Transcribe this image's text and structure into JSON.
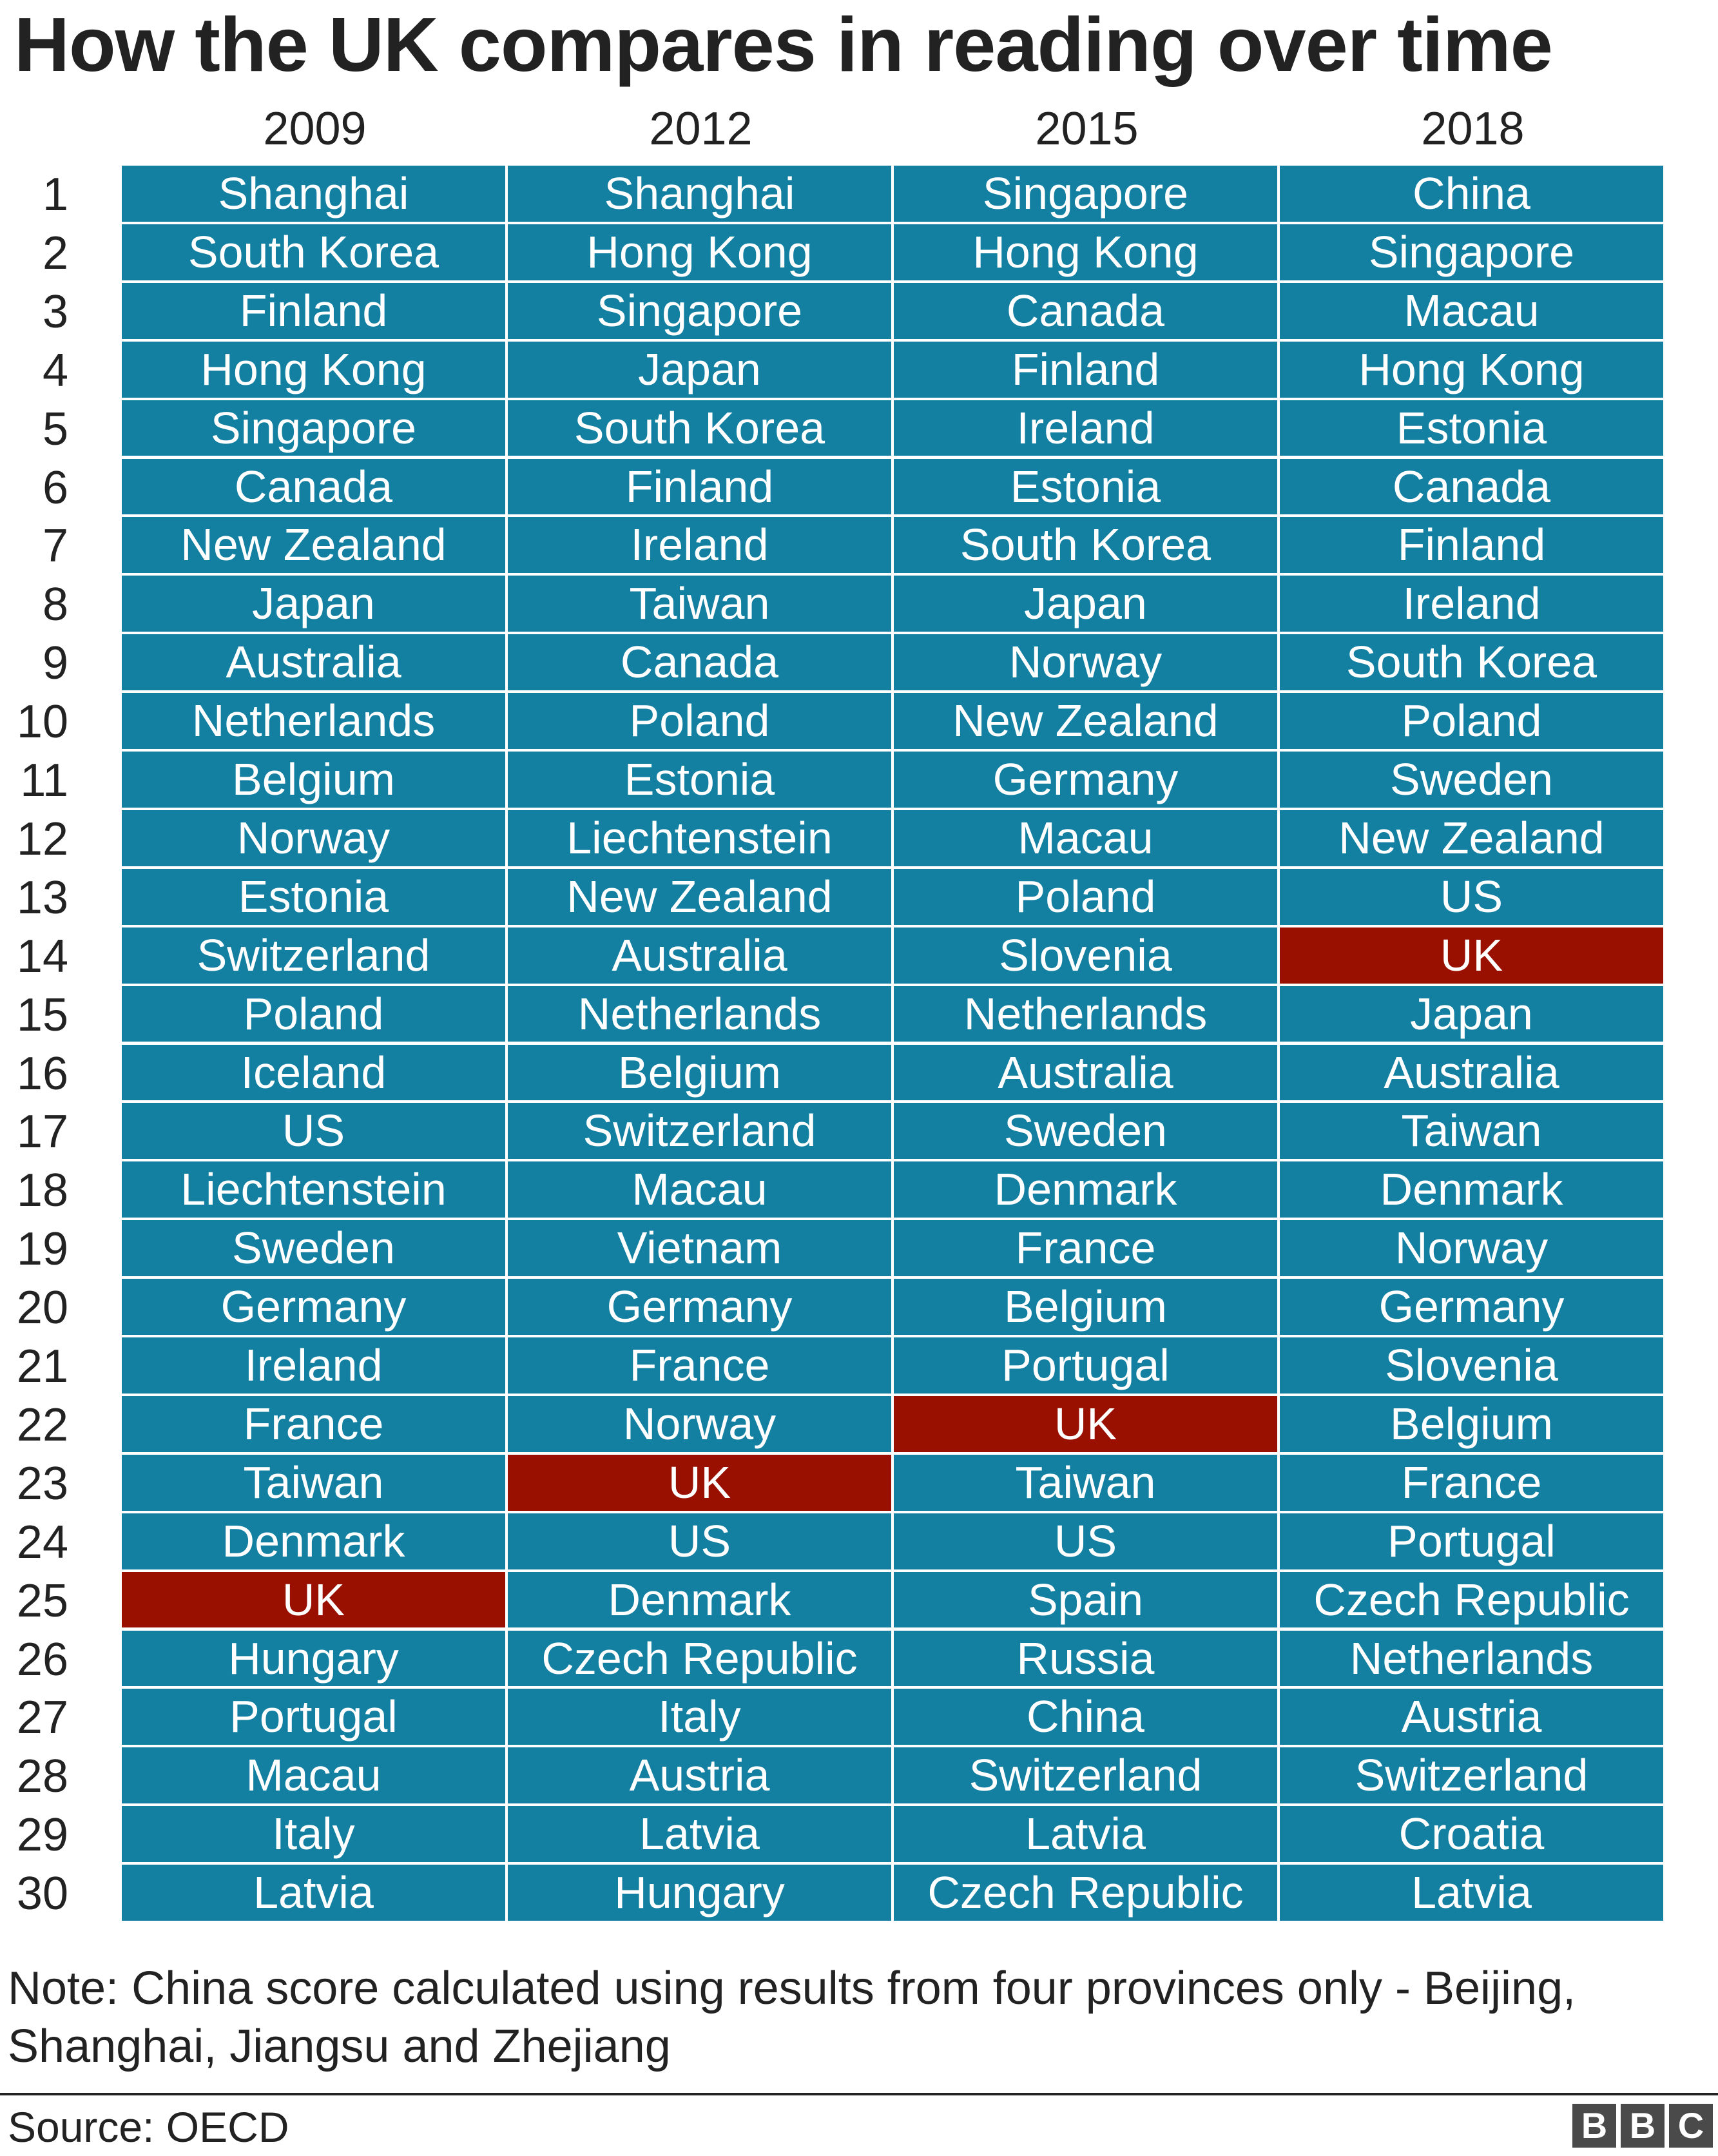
{
  "chart_data": {
    "type": "table",
    "title": "How the UK compares in reading over time",
    "columns": [
      "2009",
      "2012",
      "2015",
      "2018"
    ],
    "ranks": [
      "1",
      "2",
      "3",
      "4",
      "5",
      "6",
      "7",
      "8",
      "9",
      "10",
      "11",
      "12",
      "13",
      "14",
      "15",
      "16",
      "17",
      "18",
      "19",
      "20",
      "21",
      "22",
      "23",
      "24",
      "25",
      "26",
      "27",
      "28",
      "29",
      "30"
    ],
    "rows": [
      [
        "Shanghai",
        "Shanghai",
        "Singapore",
        "China"
      ],
      [
        "South Korea",
        "Hong Kong",
        "Hong Kong",
        "Singapore"
      ],
      [
        "Finland",
        "Singapore",
        "Canada",
        "Macau"
      ],
      [
        "Hong Kong",
        "Japan",
        "Finland",
        "Hong Kong"
      ],
      [
        "Singapore",
        "South Korea",
        "Ireland",
        "Estonia"
      ],
      [
        "Canada",
        "Finland",
        "Estonia",
        "Canada"
      ],
      [
        "New Zealand",
        "Ireland",
        "South Korea",
        "Finland"
      ],
      [
        "Japan",
        "Taiwan",
        "Japan",
        "Ireland"
      ],
      [
        "Australia",
        "Canada",
        "Norway",
        "South Korea"
      ],
      [
        "Netherlands",
        "Poland",
        "New Zealand",
        "Poland"
      ],
      [
        "Belgium",
        "Estonia",
        "Germany",
        "Sweden"
      ],
      [
        "Norway",
        "Liechtenstein",
        "Macau",
        "New Zealand"
      ],
      [
        "Estonia",
        "New Zealand",
        "Poland",
        "US"
      ],
      [
        "Switzerland",
        "Australia",
        "Slovenia",
        "UK"
      ],
      [
        "Poland",
        "Netherlands",
        "Netherlands",
        "Japan"
      ],
      [
        "Iceland",
        "Belgium",
        "Australia",
        "Australia"
      ],
      [
        "US",
        "Switzerland",
        "Sweden",
        "Taiwan"
      ],
      [
        "Liechtenstein",
        "Macau",
        "Denmark",
        "Denmark"
      ],
      [
        "Sweden",
        "Vietnam",
        "France",
        "Norway"
      ],
      [
        "Germany",
        "Germany",
        "Belgium",
        "Germany"
      ],
      [
        "Ireland",
        "France",
        "Portugal",
        "Slovenia"
      ],
      [
        "France",
        "Norway",
        "UK",
        "Belgium"
      ],
      [
        "Taiwan",
        "UK",
        "Taiwan",
        "France"
      ],
      [
        "Denmark",
        "US",
        "US",
        "Portugal"
      ],
      [
        "UK",
        "Denmark",
        "Spain",
        "Czech Republic"
      ],
      [
        "Hungary",
        "Czech Republic",
        "Russia",
        "Netherlands"
      ],
      [
        "Portugal",
        "Italy",
        "China",
        "Austria"
      ],
      [
        "Macau",
        "Austria",
        "Switzerland",
        "Switzerland"
      ],
      [
        "Italy",
        "Latvia",
        "Latvia",
        "Croatia"
      ],
      [
        "Latvia",
        "Hungary",
        "Czech Republic",
        "Latvia"
      ]
    ],
    "highlight": "UK",
    "colors": {
      "cell": "#1380a1",
      "highlight": "#990f00",
      "text": "#ffffff"
    }
  },
  "note": "Note: China score calculated using results from four provinces only - Beijing, Shanghai, Jiangsu and Zhejiang",
  "source": "Source: OECD",
  "logo": [
    "B",
    "B",
    "C"
  ]
}
